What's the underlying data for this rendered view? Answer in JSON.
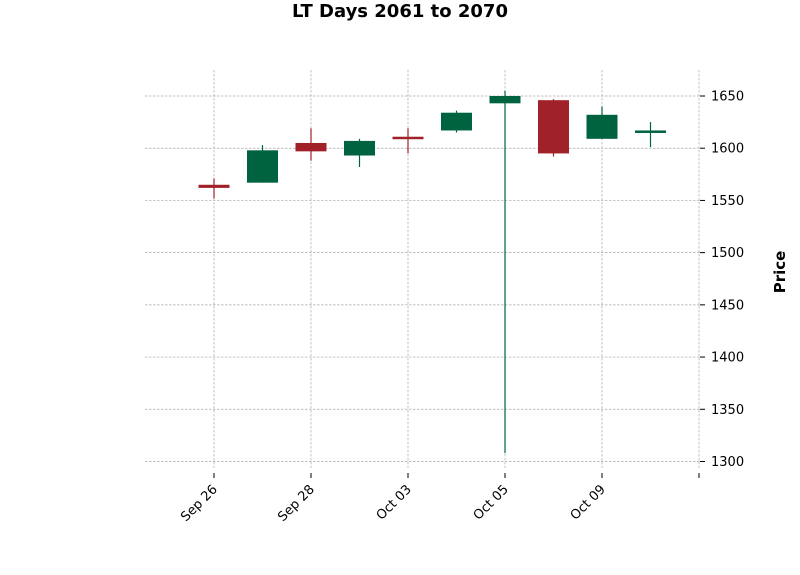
{
  "chart_data": {
    "type": "candlestick",
    "title": "LT Days 2061 to 2070",
    "xlabel": "",
    "ylabel": "Price",
    "ylim": [
      1292,
      1674
    ],
    "yticks": [
      1300,
      1350,
      1400,
      1450,
      1500,
      1550,
      1600,
      1650
    ],
    "y_axis_position": "right",
    "grid": true,
    "x_tick_labels": [
      {
        "index": 0,
        "label": "Sep 26"
      },
      {
        "index": 2,
        "label": "Sep 28"
      },
      {
        "index": 4,
        "label": "Oct 03"
      },
      {
        "index": 6,
        "label": "Oct 05"
      },
      {
        "index": 8,
        "label": "Oct 09"
      },
      {
        "index": 10,
        "label": ""
      }
    ],
    "candles": [
      {
        "open": 1565,
        "high": 1571,
        "low": 1552,
        "close": 1562
      },
      {
        "open": 1567,
        "high": 1603,
        "low": 1567,
        "close": 1598
      },
      {
        "open": 1605,
        "high": 1619,
        "low": 1588,
        "close": 1597
      },
      {
        "open": 1593,
        "high": 1609,
        "low": 1582,
        "close": 1607
      },
      {
        "open": 1611,
        "high": 1619,
        "low": 1595,
        "close": 1609
      },
      {
        "open": 1617,
        "high": 1636,
        "low": 1615,
        "close": 1634
      },
      {
        "open": 1643,
        "high": 1655,
        "low": 1308,
        "close": 1650
      },
      {
        "open": 1646,
        "high": 1647,
        "low": 1592,
        "close": 1595
      },
      {
        "open": 1609,
        "high": 1640,
        "low": 1609,
        "close": 1632
      },
      {
        "open": 1615,
        "high": 1625,
        "low": 1601,
        "close": 1617
      }
    ],
    "colors": {
      "up": "#006340",
      "down": "#a02128"
    }
  }
}
